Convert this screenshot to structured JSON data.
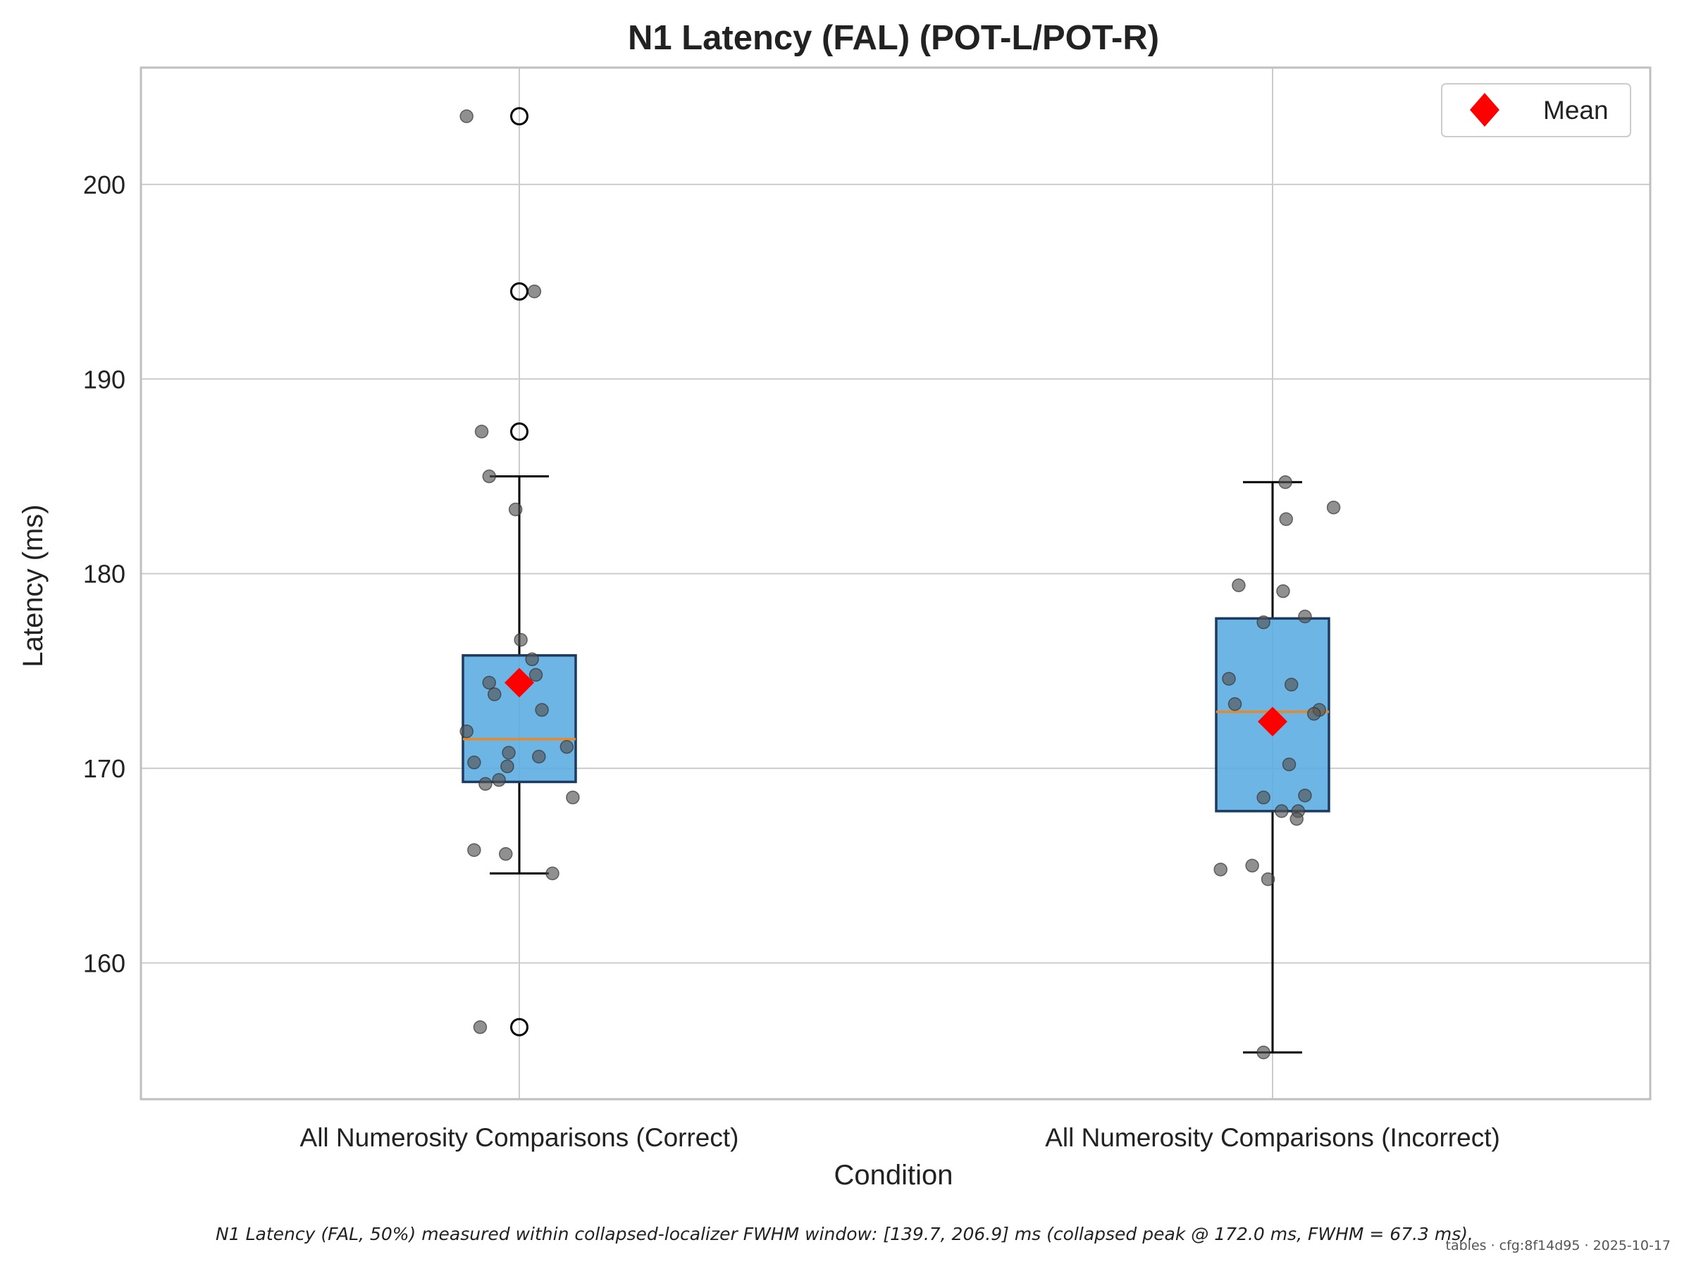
{
  "chart_data": {
    "type": "box",
    "title": "N1 Latency (FAL) (POT-L/POT-R)",
    "xlabel": "Condition",
    "ylabel": "Latency (ms)",
    "ylim": [
      153.0,
      206.0
    ],
    "yticks": [
      160,
      170,
      180,
      190,
      200
    ],
    "grid": true,
    "legend": {
      "position": "top-right",
      "entries": [
        {
          "label": "Mean",
          "marker": "diamond",
          "color": "#ff0000"
        }
      ]
    },
    "categories": [
      "All Numerosity Comparisons (Correct)",
      "All Numerosity Comparisons (Incorrect)"
    ],
    "boxes": [
      {
        "category": "All Numerosity Comparisons (Correct)",
        "whisker_low": 164.6,
        "q1": 169.3,
        "median": 171.5,
        "q3": 175.8,
        "whisker_high": 185.0,
        "mean": 174.4,
        "outliers": [
          203.5,
          194.5,
          187.3,
          156.7
        ],
        "points": [
          {
            "dx": -0.07,
            "y": 203.5
          },
          {
            "dx": 0.02,
            "y": 194.5
          },
          {
            "dx": -0.05,
            "y": 187.3
          },
          {
            "dx": -0.04,
            "y": 185.0
          },
          {
            "dx": -0.005,
            "y": 183.3
          },
          {
            "dx": 0.002,
            "y": 176.6
          },
          {
            "dx": 0.017,
            "y": 175.6
          },
          {
            "dx": 0.022,
            "y": 174.8
          },
          {
            "dx": -0.04,
            "y": 174.4
          },
          {
            "dx": -0.033,
            "y": 173.8
          },
          {
            "dx": 0.03,
            "y": 173.0
          },
          {
            "dx": -0.07,
            "y": 171.9
          },
          {
            "dx": 0.063,
            "y": 171.1
          },
          {
            "dx": -0.014,
            "y": 170.8
          },
          {
            "dx": 0.026,
            "y": 170.6
          },
          {
            "dx": -0.06,
            "y": 170.3
          },
          {
            "dx": -0.016,
            "y": 170.1
          },
          {
            "dx": -0.027,
            "y": 169.4
          },
          {
            "dx": -0.045,
            "y": 169.2
          },
          {
            "dx": 0.071,
            "y": 168.5
          },
          {
            "dx": -0.06,
            "y": 165.8
          },
          {
            "dx": -0.018,
            "y": 165.6
          },
          {
            "dx": 0.044,
            "y": 164.6
          },
          {
            "dx": -0.052,
            "y": 156.7
          }
        ]
      },
      {
        "category": "All Numerosity Comparisons (Incorrect)",
        "whisker_low": 155.4,
        "q1": 167.8,
        "median": 172.9,
        "q3": 177.7,
        "whisker_high": 184.7,
        "mean": 172.4,
        "outliers": [],
        "points": [
          {
            "dx": 0.017,
            "y": 184.7
          },
          {
            "dx": 0.018,
            "y": 182.8
          },
          {
            "dx": 0.081,
            "y": 183.4
          },
          {
            "dx": -0.045,
            "y": 179.4
          },
          {
            "dx": 0.014,
            "y": 179.1
          },
          {
            "dx": 0.043,
            "y": 177.8
          },
          {
            "dx": -0.012,
            "y": 177.5
          },
          {
            "dx": -0.058,
            "y": 174.6
          },
          {
            "dx": 0.025,
            "y": 174.3
          },
          {
            "dx": -0.05,
            "y": 173.3
          },
          {
            "dx": 0.062,
            "y": 173.0
          },
          {
            "dx": 0.055,
            "y": 172.8
          },
          {
            "dx": 0.022,
            "y": 170.2
          },
          {
            "dx": 0.043,
            "y": 168.6
          },
          {
            "dx": -0.012,
            "y": 168.5
          },
          {
            "dx": 0.012,
            "y": 167.8
          },
          {
            "dx": 0.034,
            "y": 167.8
          },
          {
            "dx": 0.032,
            "y": 167.4
          },
          {
            "dx": -0.027,
            "y": 165.0
          },
          {
            "dx": -0.069,
            "y": 164.8
          },
          {
            "dx": -0.006,
            "y": 164.3
          },
          {
            "dx": -0.012,
            "y": 155.4
          }
        ]
      }
    ],
    "colors": {
      "box_fill": "#5dade2",
      "box_edge": "#1f3a5f",
      "median": "#e6892b",
      "mean": "#ff0000",
      "point": "#555555",
      "grid": "#cccccc",
      "spine": "#bfbfbf"
    }
  },
  "footnote": "N1 Latency (FAL, 50%) measured within collapsed-localizer FWHM window: [139.7, 206.9] ms (collapsed peak @ 172.0 ms, FWHM = 67.3 ms).",
  "stamp": "tables · cfg:8f14d95 · 2025-10-17"
}
